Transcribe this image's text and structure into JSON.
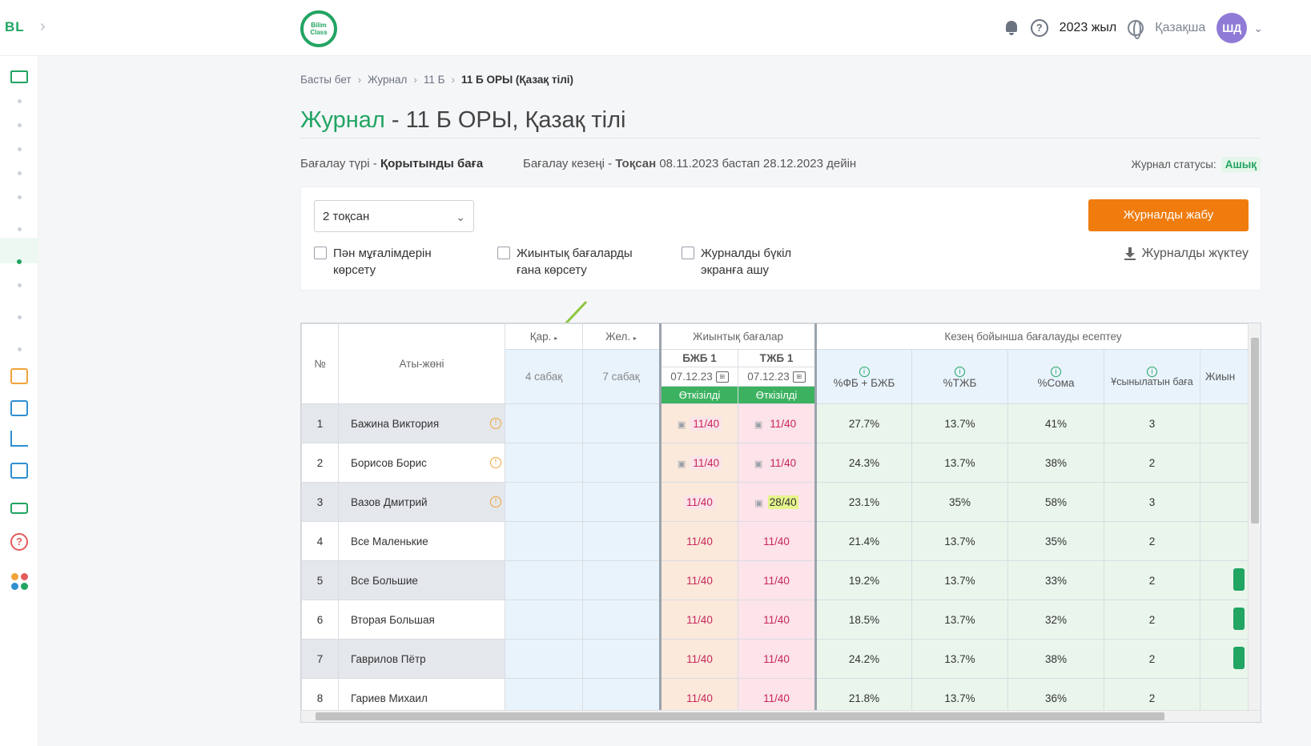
{
  "sidebar_logo": "BL",
  "brand_text": "Bilim Class",
  "topbar": {
    "year": "2023 жыл",
    "language": "Қазақша",
    "avatar_initials": "ШД"
  },
  "breadcrumb": [
    "Басты бет",
    "Журнал",
    "11 Б",
    "11 Б ОРЫ (Қазақ тілі)"
  ],
  "title_main": "Журнал",
  "title_rest": " - 11 Б ОРЫ, Қазақ тілі",
  "assessment": {
    "type_label": "Бағалау түрі - ",
    "type_value": "Қорытынды баға",
    "period_label": "Бағалау кезеңі - ",
    "period_value": "Тоқсан",
    "period_range": " 08.11.2023 бастап 28.12.2023 дейін"
  },
  "status": {
    "label": "Журнал статусы:",
    "value": "Ашық"
  },
  "controls": {
    "quarter_select": "2 тоқсан",
    "close_button": "Журналды жабу",
    "download": "Журналды жүктеу",
    "checkboxes": [
      {
        "line1": "Пән мұғалімдерін",
        "line2": "көрсету"
      },
      {
        "line1": "Жиынтық бағаларды",
        "line2": "ғана көрсету"
      },
      {
        "line1": "Журналды бүкіл",
        "line2": "экранға ашу"
      }
    ]
  },
  "table": {
    "col_no": "№",
    "col_name": "Аты-жөні",
    "months": [
      "Қар.",
      "Жел."
    ],
    "lessons": [
      "4 сабақ",
      "7 сабақ"
    ],
    "group_summary": "Жиынтық бағалар",
    "group_period": "Кезең бойынша бағалауды есептеу",
    "summative": [
      {
        "name": "БЖБ 1",
        "date": "07.12.23",
        "state": "Өткізілді"
      },
      {
        "name": "ТЖБ 1",
        "date": "07.12.23",
        "state": "Өткізілді"
      }
    ],
    "calc_headers": [
      "%ФБ + БЖБ",
      "%ТЖБ",
      "%Сома",
      "Ұсынылатын баға",
      "Жиын"
    ],
    "rows": [
      {
        "no": "1",
        "name": "Бажина Виктория",
        "bjb": "11/40",
        "tjb": "11/40",
        "fb": "27.7%",
        "tjb_pct": "13.7%",
        "sum": "41%",
        "grade": "3"
      },
      {
        "no": "2",
        "name": "Борисов Борис",
        "bjb": "11/40",
        "tjb": "11/40",
        "fb": "24.3%",
        "tjb_pct": "13.7%",
        "sum": "38%",
        "grade": "2"
      },
      {
        "no": "3",
        "name": "Вазов Дмитрий",
        "bjb": "11/40",
        "tjb": "28/40",
        "fb": "23.1%",
        "tjb_pct": "35%",
        "sum": "58%",
        "grade": "3"
      },
      {
        "no": "4",
        "name": "Все Маленькие",
        "bjb": "11/40",
        "tjb": "11/40",
        "fb": "21.4%",
        "tjb_pct": "13.7%",
        "sum": "35%",
        "grade": "2"
      },
      {
        "no": "5",
        "name": "Все Большие",
        "bjb": "11/40",
        "tjb": "11/40",
        "fb": "19.2%",
        "tjb_pct": "13.7%",
        "sum": "33%",
        "grade": "2"
      },
      {
        "no": "6",
        "name": "Вторая Большая",
        "bjb": "11/40",
        "tjb": "11/40",
        "fb": "18.5%",
        "tjb_pct": "13.7%",
        "sum": "32%",
        "grade": "2"
      },
      {
        "no": "7",
        "name": "Гаврилов Пётр",
        "bjb": "11/40",
        "tjb": "11/40",
        "fb": "24.2%",
        "tjb_pct": "13.7%",
        "sum": "38%",
        "grade": "2"
      },
      {
        "no": "8",
        "name": "Гариев Михаил",
        "bjb": "11/40",
        "tjb": "11/40",
        "fb": "21.8%",
        "tjb_pct": "13.7%",
        "sum": "36%",
        "grade": "2"
      }
    ]
  },
  "colors": {
    "brand_green": "#22a463",
    "orange": "#f07c0e",
    "mark_red": "#c8275a"
  }
}
